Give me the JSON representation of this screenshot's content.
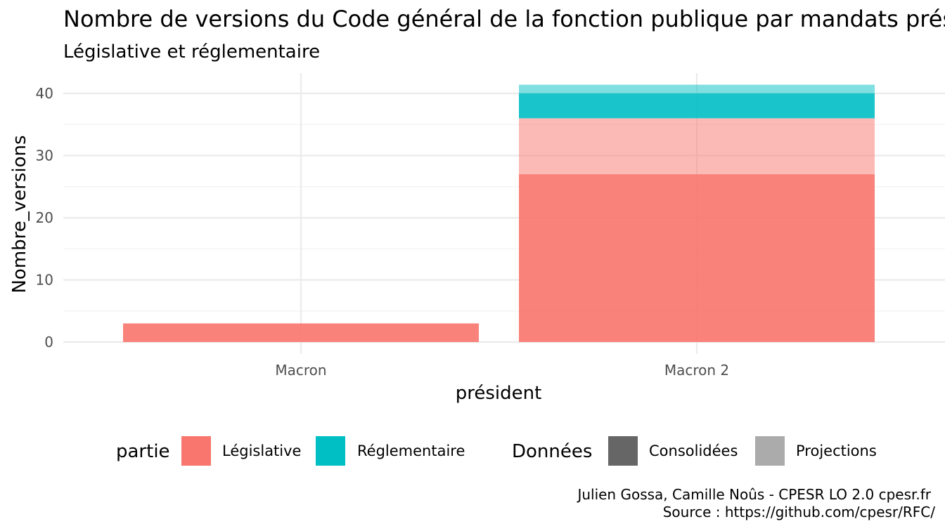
{
  "chart_data": {
    "type": "bar",
    "stacked": true,
    "title": "Nombre de versions du Code général de la fonction publique par mandats présidentiels",
    "subtitle": "Législative et réglementaire",
    "xlabel": "président",
    "ylabel": "Nombre_versions",
    "categories": [
      "Macron",
      "Macron 2"
    ],
    "ylim": [
      0,
      43
    ],
    "yticks": [
      0,
      10,
      20,
      30,
      40
    ],
    "grid": true,
    "series": [
      {
        "partie": "Législative",
        "donnees": "Consolidées",
        "values": [
          3,
          27
        ]
      },
      {
        "partie": "Législative",
        "donnees": "Projections",
        "values": [
          0,
          9
        ]
      },
      {
        "partie": "Réglementaire",
        "donnees": "Consolidées",
        "values": [
          0,
          4
        ]
      },
      {
        "partie": "Réglementaire",
        "donnees": "Projections",
        "values": [
          0,
          1.4
        ]
      }
    ],
    "legend": {
      "position": "bottom",
      "groups": [
        {
          "title": "partie",
          "items": [
            {
              "label": "Législative",
              "color": "#f8766d"
            },
            {
              "label": "Réglementaire",
              "color": "#00bfc4"
            }
          ]
        },
        {
          "title": "Données",
          "items": [
            {
              "label": "Consolidées",
              "color": "#666666"
            },
            {
              "label": "Projections",
              "color": "#ababab"
            }
          ]
        }
      ]
    },
    "colors": {
      "Législative": "#f8766d",
      "Réglementaire": "#00bfc4"
    },
    "opacity": {
      "Consolidées": 0.9,
      "Projections": 0.5
    },
    "caption": [
      "Julien Gossa, Camille Noûs - CPESR LO 2.0 cpesr.fr",
      "Source : https://github.com/cpesr/RFC/"
    ]
  }
}
